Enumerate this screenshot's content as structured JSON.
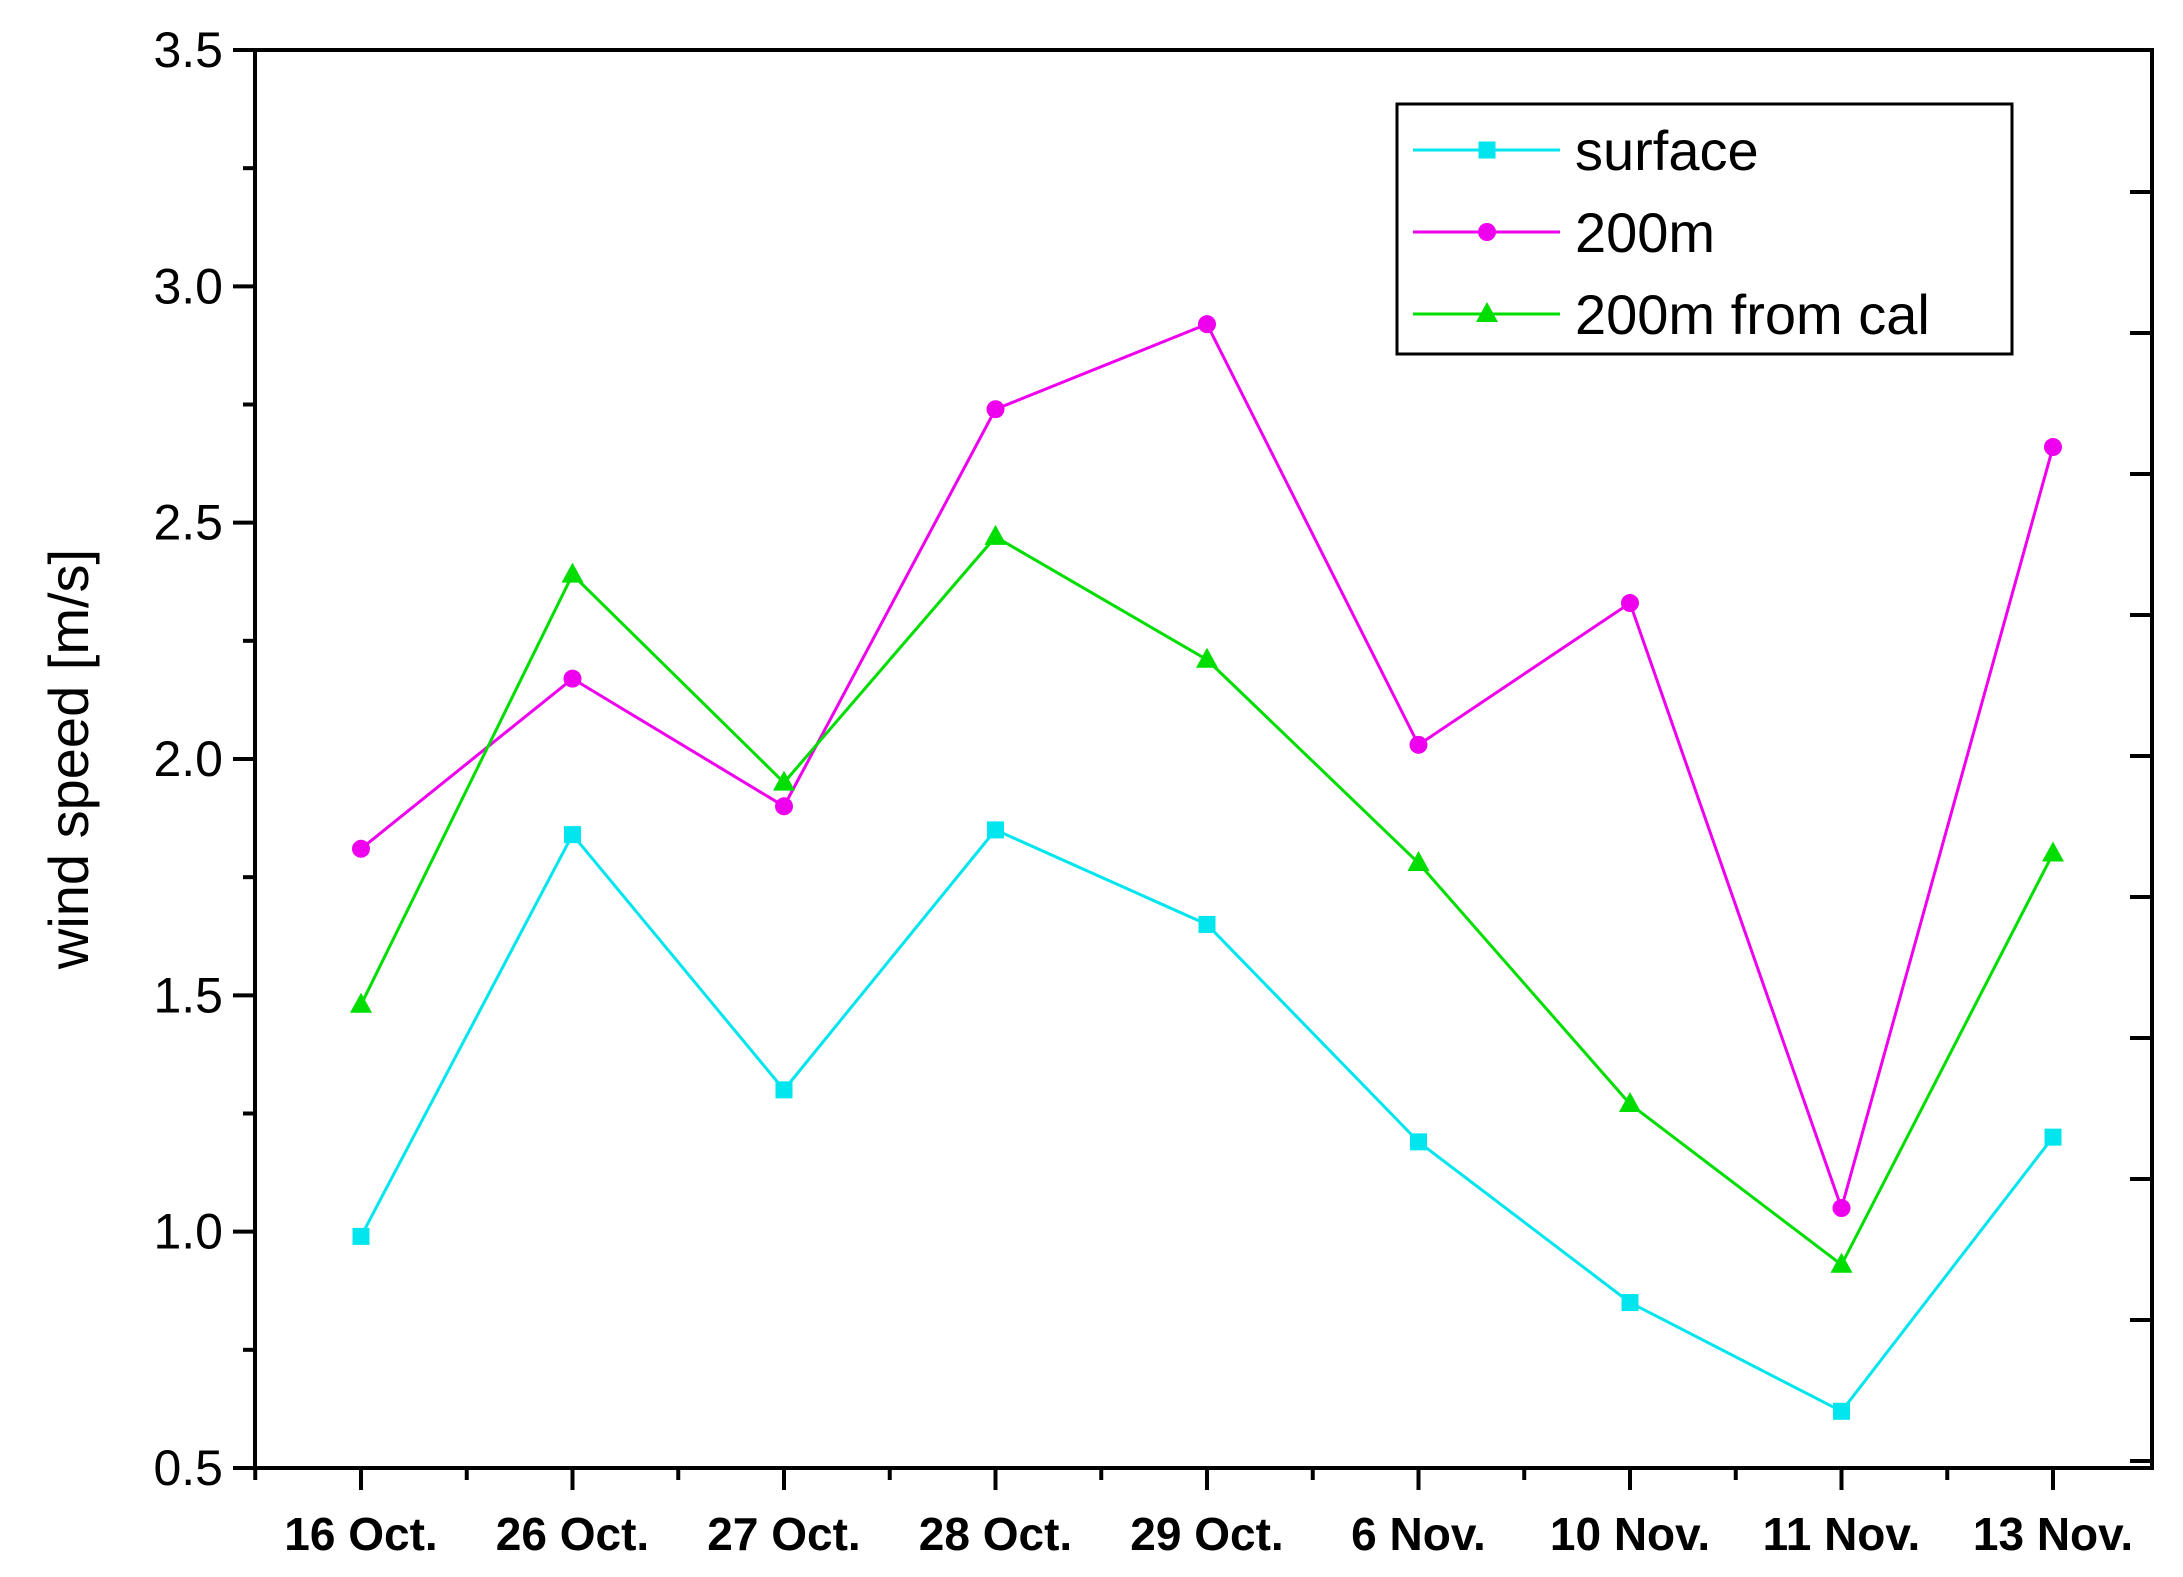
{
  "chart_data": {
    "type": "line",
    "title": "",
    "xlabel": "",
    "ylabel": "wind speed [m/s]",
    "categories": [
      "16 Oct.",
      "26 Oct.",
      "27 Oct.",
      "28 Oct.",
      "29 Oct.",
      "6 Nov.",
      "10 Nov.",
      "11 Nov.",
      "13 Nov."
    ],
    "ylim": [
      0.5,
      3.5
    ],
    "yticks": [
      "0.5",
      "1.0",
      "1.5",
      "2.0",
      "2.5",
      "3.0",
      "3.5"
    ],
    "grid": false,
    "legend_position": "top-right",
    "series": [
      {
        "name": "surface",
        "marker": "square",
        "color": "#00e5ee",
        "values": [
          0.99,
          1.84,
          1.3,
          1.85,
          1.65,
          1.19,
          0.85,
          0.62,
          1.2
        ]
      },
      {
        "name": "200m",
        "marker": "circle",
        "color": "#ee00ee",
        "values": [
          1.81,
          2.17,
          1.9,
          2.74,
          2.92,
          2.03,
          2.33,
          1.05,
          2.66
        ]
      },
      {
        "name": "200m from cal",
        "marker": "triangle",
        "color": "#00dd00",
        "values": [
          1.48,
          2.39,
          1.95,
          2.47,
          2.21,
          1.78,
          1.27,
          0.93,
          1.8
        ]
      }
    ]
  }
}
